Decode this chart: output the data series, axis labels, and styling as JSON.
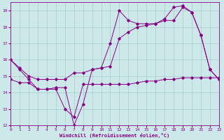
{
  "xlabel": "Windchill (Refroidissement éolien,°C)",
  "background_color": "#cce8e8",
  "grid_color": "#aacccc",
  "line_color": "#880088",
  "xmin": 0,
  "xmax": 23,
  "ymin": 12,
  "ymax": 19.5,
  "xticks": [
    0,
    1,
    2,
    3,
    4,
    5,
    6,
    7,
    8,
    9,
    10,
    11,
    12,
    13,
    14,
    15,
    16,
    17,
    18,
    19,
    20,
    21,
    22,
    23
  ],
  "yticks": [
    12,
    13,
    14,
    15,
    16,
    17,
    18,
    19
  ],
  "series1_x": [
    0,
    1,
    2,
    3,
    4,
    5,
    6,
    7,
    8,
    9,
    10,
    11,
    12,
    13,
    14,
    15,
    16,
    17,
    18,
    19,
    20,
    21,
    22,
    23
  ],
  "series1_y": [
    16.0,
    15.4,
    14.8,
    14.2,
    14.2,
    14.3,
    14.3,
    12.0,
    13.3,
    15.4,
    15.5,
    17.0,
    19.0,
    18.4,
    18.2,
    18.2,
    18.2,
    18.4,
    18.4,
    19.2,
    18.9,
    17.5,
    15.4,
    14.8
  ],
  "series2_x": [
    0,
    1,
    2,
    3,
    4,
    5,
    6,
    7,
    8,
    9,
    10,
    11,
    12,
    13,
    14,
    15,
    16,
    17,
    18,
    19,
    20,
    21,
    22,
    23
  ],
  "series2_y": [
    16.0,
    15.5,
    15.0,
    14.8,
    14.8,
    14.8,
    14.8,
    15.2,
    15.2,
    15.4,
    15.5,
    15.6,
    17.3,
    17.7,
    18.0,
    18.1,
    18.2,
    18.5,
    19.2,
    19.3,
    18.9,
    17.5,
    15.4,
    14.8
  ],
  "series3_x": [
    0,
    1,
    2,
    3,
    4,
    5,
    6,
    7,
    8,
    9,
    10,
    11,
    12,
    13,
    14,
    15,
    16,
    17,
    18,
    19,
    20,
    21,
    22,
    23
  ],
  "series3_y": [
    14.8,
    14.6,
    14.6,
    14.2,
    14.2,
    14.2,
    13.0,
    12.5,
    14.5,
    14.5,
    14.5,
    14.5,
    14.5,
    14.5,
    14.6,
    14.7,
    14.7,
    14.8,
    14.8,
    14.9,
    14.9,
    14.9,
    14.9,
    14.9
  ]
}
